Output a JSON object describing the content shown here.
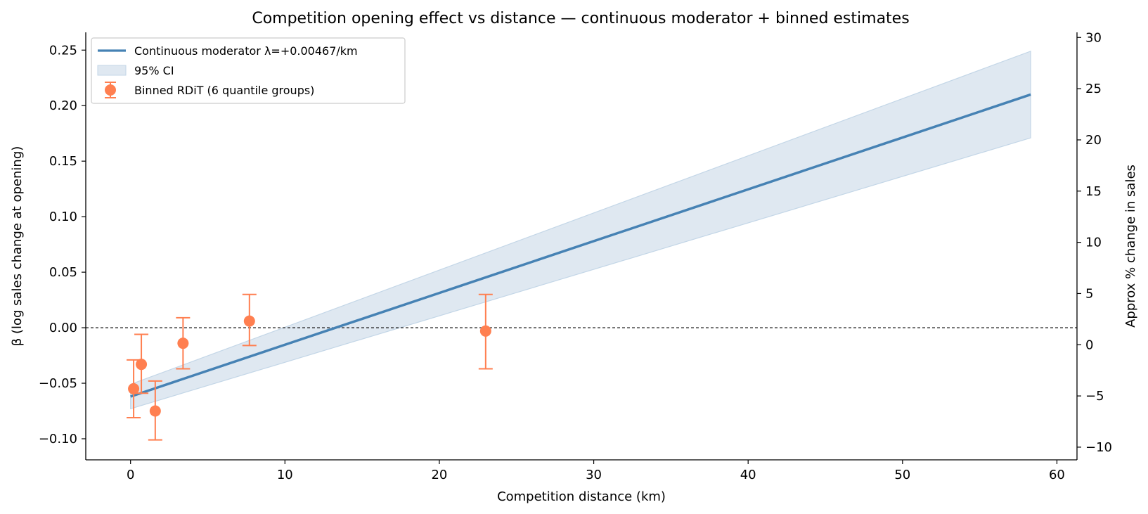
{
  "chart_data": {
    "type": "line",
    "title": "Competition opening effect vs distance — continuous moderator + binned estimates",
    "xlabel": "Competition distance (km)",
    "ylabel": "β  (log sales change at opening)",
    "y2label": "Approx % change in sales",
    "xlim": [
      -2.9,
      61.3
    ],
    "ylim": [
      -0.119,
      0.266
    ],
    "y2lim": [
      -11.24,
      30.5
    ],
    "x_ticks": [
      0,
      10,
      20,
      30,
      40,
      50,
      60
    ],
    "y_ticks": [
      -0.1,
      -0.05,
      0.0,
      0.05,
      0.1,
      0.15,
      0.2,
      0.25
    ],
    "y_tick_labels": [
      "−0.10",
      "−0.05",
      "0.00",
      "0.05",
      "0.10",
      "0.15",
      "0.20",
      "0.25"
    ],
    "y2_ticks": [
      -10,
      -5,
      0,
      5,
      10,
      15,
      20,
      25,
      30
    ],
    "y2_tick_labels": [
      "−10",
      "−5",
      "0",
      "5",
      "10",
      "15",
      "20",
      "25",
      "30"
    ],
    "reference_line_y": 0,
    "legend_position": "upper-left",
    "grid": false,
    "colors": {
      "line": "#4682b4",
      "ci_fill": "#dfe8f1",
      "ci_edge": "#c3d6e7",
      "points": "#ff7f50"
    },
    "series": [
      {
        "name": "Continuous moderator  λ=+0.00467/km",
        "kind": "line",
        "x": [
          0,
          58.3
        ],
        "y": [
          -0.062,
          0.21
        ]
      },
      {
        "name": "95% CI",
        "kind": "band",
        "x": [
          0,
          58.3
        ],
        "lower": [
          -0.073,
          0.171
        ],
        "upper": [
          -0.051,
          0.249
        ]
      },
      {
        "name": "Binned RDiT (6 quantile groups)",
        "kind": "errorbar",
        "x": [
          0.2,
          0.7,
          1.6,
          3.4,
          7.7,
          23.0
        ],
        "y": [
          -0.055,
          -0.033,
          -0.075,
          -0.014,
          0.006,
          -0.003
        ],
        "lower": [
          -0.081,
          -0.059,
          -0.101,
          -0.037,
          -0.016,
          -0.037
        ],
        "upper": [
          -0.029,
          -0.006,
          -0.048,
          0.009,
          0.03,
          0.03
        ]
      }
    ]
  }
}
